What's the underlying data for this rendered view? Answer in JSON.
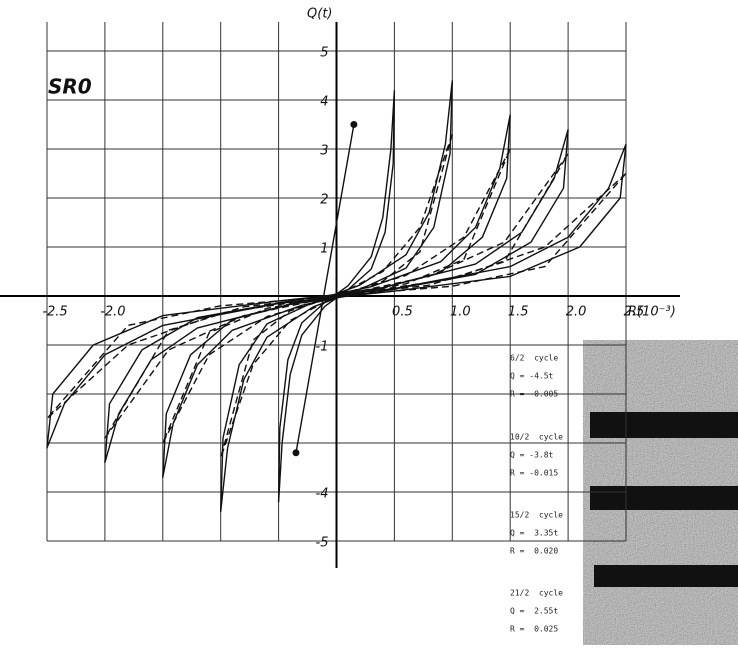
{
  "chart_data": {
    "type": "line",
    "annotation": "SR0",
    "ylabel": "Q(t)",
    "xlabel": "R(10⁻³)",
    "xlim": [
      -2.5,
      2.5
    ],
    "ylim": [
      -5,
      5
    ],
    "xticks": [
      -2.5,
      {
        "value": -2,
        "label": "-2.0"
      },
      {
        "value": -1.5,
        "label": null
      },
      {
        "value": -1,
        "label": null
      },
      {
        "value": -0.5,
        "label": null
      },
      0.5,
      {
        "value": 1,
        "label": "1.0"
      },
      1.5,
      {
        "value": 2,
        "label": "2.0"
      },
      2.5
    ],
    "yticks": [
      5,
      4,
      3,
      2,
      1,
      -1,
      {
        "value": -2,
        "label": null
      },
      {
        "value": -3,
        "label": null
      },
      -4,
      -5
    ],
    "grid": true,
    "series": [
      {
        "color": "#111111",
        "dash": false,
        "x": [
          2.5,
          2.35,
          2.0,
          1.5,
          0.5,
          -0.5,
          -1.5,
          -2.1,
          -2.45,
          -2.5,
          -2.35,
          -2.0,
          -1.5,
          -0.5,
          0.5,
          1.5,
          2.1,
          2.45,
          2.5
        ],
        "values": [
          3.1,
          2.2,
          1.2,
          0.6,
          0.15,
          -0.1,
          -0.4,
          -1.0,
          -2.0,
          -3.1,
          -2.2,
          -1.2,
          -0.6,
          -0.15,
          0.1,
          0.4,
          1.0,
          2.0,
          3.1
        ]
      },
      {
        "color": "#111111",
        "dash": false,
        "x": [
          2.0,
          1.88,
          1.6,
          1.2,
          0.4,
          -0.4,
          -1.2,
          -1.68,
          -1.96,
          -2.0,
          -1.88,
          -1.6,
          -1.2,
          -0.4,
          0.4,
          1.2,
          1.68,
          1.96,
          2.0
        ],
        "values": [
          3.4,
          2.4,
          1.3,
          0.65,
          0.17,
          -0.1,
          -0.44,
          -1.1,
          -2.2,
          -3.4,
          -2.4,
          -1.3,
          -0.65,
          -0.17,
          0.1,
          0.44,
          1.1,
          2.2,
          3.4
        ]
      },
      {
        "color": "#111111",
        "dash": false,
        "x": [
          1.5,
          1.41,
          1.2,
          0.9,
          0.3,
          -0.3,
          -0.9,
          -1.26,
          -1.47,
          -1.5,
          -1.41,
          -1.2,
          -0.9,
          -0.3,
          0.3,
          0.9,
          1.26,
          1.47,
          1.5
        ],
        "values": [
          3.7,
          2.6,
          1.4,
          0.7,
          0.19,
          -0.11,
          -0.48,
          -1.2,
          -2.4,
          -3.7,
          -2.6,
          -1.4,
          -0.7,
          -0.19,
          0.11,
          0.48,
          1.2,
          2.4,
          3.7
        ]
      },
      {
        "color": "#111111",
        "dash": false,
        "x": [
          1.0,
          0.94,
          0.8,
          0.6,
          0.2,
          -0.2,
          -0.6,
          -0.84,
          -0.98,
          -1.0,
          -0.94,
          -0.8,
          -0.6,
          -0.2,
          0.2,
          0.6,
          0.84,
          0.98,
          1.0
        ],
        "values": [
          4.4,
          3.1,
          1.7,
          0.84,
          0.22,
          -0.13,
          -0.57,
          -1.4,
          -2.9,
          -4.4,
          -3.1,
          -1.7,
          -0.84,
          -0.22,
          0.13,
          0.57,
          1.4,
          2.9,
          4.4
        ]
      },
      {
        "color": "#111111",
        "dash": false,
        "x": [
          0.5,
          0.47,
          0.4,
          0.3,
          0.1,
          -0.1,
          -0.3,
          -0.42,
          -0.49,
          -0.5,
          -0.47,
          -0.4,
          -0.3,
          -0.1,
          0.1,
          0.3,
          0.42,
          0.49,
          0.5
        ],
        "values": [
          4.2,
          3.0,
          1.6,
          0.8,
          0.21,
          -0.13,
          -0.55,
          -1.3,
          -2.7,
          -4.2,
          -3.0,
          -1.6,
          -0.8,
          -0.21,
          0.13,
          0.55,
          1.3,
          2.7,
          4.2
        ]
      },
      {
        "color": "#111111",
        "dash": true,
        "x": [
          2.5,
          1.8,
          1.0,
          0,
          -1.0,
          -1.8,
          -2.5,
          -1.8,
          -1.0,
          0,
          1.0,
          1.8,
          2.5
        ],
        "values": [
          2.5,
          1.0,
          0.35,
          0,
          -0.2,
          -0.6,
          -2.5,
          -1.0,
          -0.35,
          0,
          0.2,
          0.6,
          2.5
        ]
      },
      {
        "color": "#111111",
        "dash": true,
        "x": [
          2.0,
          1.45,
          0.8,
          0,
          -0.8,
          -1.45,
          -2.0,
          -1.45,
          -0.8,
          0,
          0.8,
          1.45,
          2.0
        ],
        "values": [
          2.9,
          1.1,
          0.4,
          0,
          -0.22,
          -0.7,
          -2.9,
          -1.1,
          -0.4,
          0,
          0.22,
          0.7,
          2.9
        ]
      },
      {
        "color": "#111111",
        "dash": true,
        "x": [
          1.5,
          1.1,
          0.6,
          0,
          -0.6,
          -1.1,
          -1.5,
          -1.1,
          -0.6,
          0,
          0.6,
          1.1,
          1.5
        ],
        "values": [
          3.0,
          1.2,
          0.42,
          0,
          -0.25,
          -0.75,
          -3.0,
          -1.2,
          -0.42,
          0,
          0.25,
          0.75,
          3.0
        ]
      },
      {
        "color": "#111111",
        "dash": true,
        "x": [
          1.0,
          0.72,
          0.4,
          0,
          -0.4,
          -0.72,
          -1.0,
          -0.72,
          -0.4,
          0,
          0.4,
          0.72,
          1.0
        ],
        "values": [
          3.3,
          1.4,
          0.5,
          0,
          -0.3,
          -0.9,
          -3.3,
          -1.4,
          -0.5,
          0,
          0.3,
          0.9,
          3.3
        ]
      },
      {
        "color": "#111111",
        "dash": false,
        "markers": true,
        "x": [
          0.15,
          -0.35
        ],
        "values": [
          3.5,
          -3.2
        ]
      }
    ]
  },
  "photo_labels": [
    {
      "cycle": "6/2  cycle",
      "q": "Q = -4.5t",
      "r": "R = -0.005"
    },
    {
      "cycle": "10/2  cycle",
      "q": "Q = -3.8t",
      "r": "R = -0.015"
    },
    {
      "cycle": "15/2  cycle",
      "q": "Q =  3.35t",
      "r": "R =  0.020"
    },
    {
      "cycle": "21/2  cycle",
      "q": "Q =  2.55t",
      "r": "R =  0.025"
    }
  ]
}
